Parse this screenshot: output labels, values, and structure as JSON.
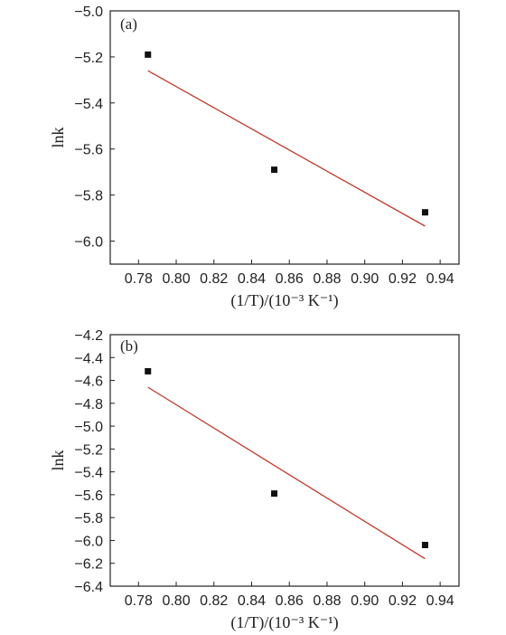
{
  "chart_data": [
    {
      "type": "scatter",
      "panel_label": "(a)",
      "xlabel": "(1/T)/(10⁻³ K⁻¹)",
      "ylabel": "lnk",
      "xlim": [
        0.765,
        0.95
      ],
      "ylim": [
        -6.1,
        -5.0
      ],
      "xticks": [
        0.78,
        0.8,
        0.82,
        0.84,
        0.86,
        0.88,
        0.9,
        0.92,
        0.94
      ],
      "xtick_labels": [
        "0.78",
        "0.80",
        "0.82",
        "0.84",
        "0.86",
        "0.88",
        "0.90",
        "0.92",
        "0.94"
      ],
      "yticks": [
        -5.0,
        -5.2,
        -5.4,
        -5.6,
        -5.8,
        -6.0
      ],
      "ytick_labels": [
        "−5.0",
        "−5.2",
        "−5.4",
        "−5.6",
        "−5.8",
        "−6.0"
      ],
      "points": {
        "x": [
          0.785,
          0.852,
          0.932
        ],
        "y": [
          -5.19,
          -5.69,
          -5.875
        ]
      },
      "fit_line": {
        "x": [
          0.785,
          0.932
        ],
        "y": [
          -5.26,
          -5.935
        ]
      },
      "grid": false,
      "colors": {
        "points": "#111111",
        "fit_line": "#c0392b",
        "axes": "#222222"
      }
    },
    {
      "type": "scatter",
      "panel_label": "(b)",
      "xlabel": "(1/T)/(10⁻³ K⁻¹)",
      "ylabel": "lnk",
      "xlim": [
        0.765,
        0.95
      ],
      "ylim": [
        -6.4,
        -4.2
      ],
      "xticks": [
        0.78,
        0.8,
        0.82,
        0.84,
        0.86,
        0.88,
        0.9,
        0.92,
        0.94
      ],
      "xtick_labels": [
        "0.78",
        "0.80",
        "0.82",
        "0.84",
        "0.86",
        "0.88",
        "0.90",
        "0.92",
        "0.94"
      ],
      "yticks": [
        -4.2,
        -4.4,
        -4.6,
        -4.8,
        -5.0,
        -5.2,
        -5.4,
        -5.6,
        -5.8,
        -6.0,
        -6.2,
        -6.4
      ],
      "ytick_labels": [
        "−4.2",
        "−4.4",
        "−4.6",
        "−4.8",
        "−5.0",
        "−5.2",
        "−5.4",
        "−5.6",
        "−5.8",
        "−6.0",
        "−6.2",
        "−6.4"
      ],
      "points": {
        "x": [
          0.785,
          0.852,
          0.932
        ],
        "y": [
          -4.52,
          -5.59,
          -6.04
        ]
      },
      "fit_line": {
        "x": [
          0.785,
          0.932
        ],
        "y": [
          -4.66,
          -6.16
        ]
      },
      "grid": false,
      "colors": {
        "points": "#111111",
        "fit_line": "#c0392b",
        "axes": "#222222"
      }
    }
  ]
}
